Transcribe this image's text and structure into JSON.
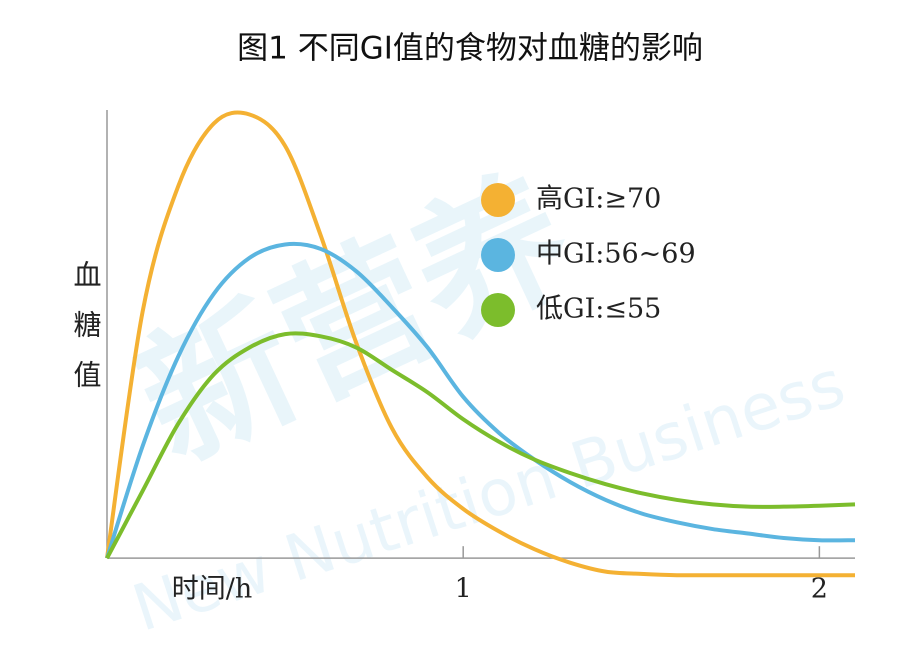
{
  "chart_data": {
    "type": "line",
    "title": "图1 不同GI值的食物对血糖的影响",
    "xlabel": "时间/h",
    "ylabel": "血糖值",
    "watermark": [
      "新营养",
      "New Nutrition Business"
    ],
    "x": [
      0,
      0.1,
      0.2,
      0.3,
      0.4,
      0.5,
      0.6,
      0.7,
      0.8,
      0.9,
      1.0,
      1.1,
      1.2,
      1.3,
      1.4,
      1.5,
      1.6,
      1.7,
      1.8,
      1.9,
      2.0,
      2.1
    ],
    "series": [
      {
        "name": "高GI:≥70",
        "color": "#f4b133",
        "values": [
          0,
          55,
          83,
          97,
          99,
          92,
          72,
          48,
          29,
          18,
          11,
          6,
          2,
          -1,
          -3,
          -3.5,
          -3.8,
          -3.8,
          -3.8,
          -3.8,
          -3.8,
          -3.8
        ]
      },
      {
        "name": "中GI:56~69",
        "color": "#5bb5e0",
        "values": [
          0,
          25,
          45,
          59,
          67,
          70,
          69,
          64,
          56,
          47,
          36,
          28,
          22,
          17,
          13,
          10,
          8,
          6.5,
          5.5,
          4.5,
          4,
          4
        ]
      },
      {
        "name": "低GI:≤55",
        "color": "#7cbd2c",
        "values": [
          0,
          15,
          30,
          41,
          47,
          50,
          49.5,
          47,
          42,
          37,
          31,
          26,
          22,
          19,
          16.5,
          14.5,
          13,
          12,
          11.5,
          11.5,
          11.7,
          12
        ]
      }
    ],
    "xlim": [
      0,
      2.1
    ],
    "ylim": [
      -10,
      100
    ],
    "xticks": [
      1,
      2
    ],
    "legend": "upper-right"
  }
}
